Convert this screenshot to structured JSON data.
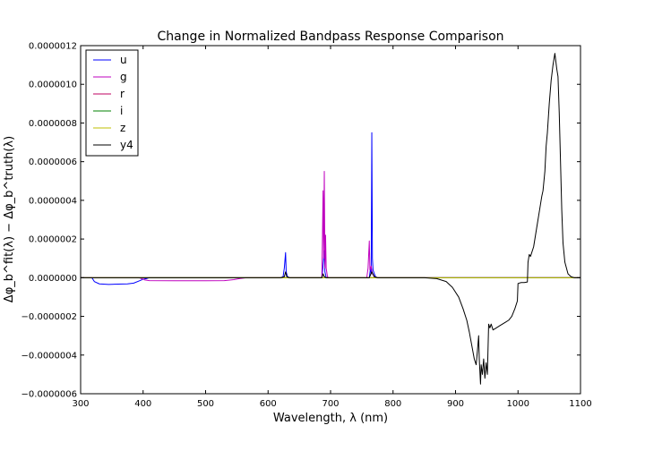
{
  "chart_data": {
    "type": "line",
    "title": "Change in Normalized Bandpass Response Comparison",
    "xlabel": "Wavelength, λ (nm)",
    "ylabel": "Δφ_b^fit(λ) − Δφ_b^truth(λ)",
    "xlim": [
      300,
      1100
    ],
    "ylim": [
      -6e-07,
      1.2e-06
    ],
    "x_ticks": [
      300,
      400,
      500,
      600,
      700,
      800,
      900,
      1000,
      1100
    ],
    "y_ticks": [
      -6e-07,
      -4e-07,
      -2e-07,
      0.0,
      2e-07,
      4e-07,
      6e-07,
      8e-07,
      1e-06,
      1.2e-06
    ],
    "x_tick_labels": [
      "300",
      "400",
      "500",
      "600",
      "700",
      "800",
      "900",
      "1000",
      "1100"
    ],
    "y_tick_labels": [
      "−0.0000006",
      "−0.0000004",
      "−0.0000002",
      "0.0000000",
      "0.0000002",
      "0.0000004",
      "0.0000006",
      "0.0000008",
      "0.0000010",
      "0.0000012"
    ],
    "grid": false,
    "legend_position": "top-left",
    "series": [
      {
        "name": "u",
        "color": "#0000ff",
        "points": [
          [
            300,
            0
          ],
          [
            318,
            0
          ],
          [
            322,
            -2e-08
          ],
          [
            330,
            -3.2e-08
          ],
          [
            345,
            -3.5e-08
          ],
          [
            360,
            -3.3e-08
          ],
          [
            375,
            -3.2e-08
          ],
          [
            385,
            -2.8e-08
          ],
          [
            395,
            -1.5e-08
          ],
          [
            400,
            -8e-09
          ],
          [
            405,
            -5e-09
          ],
          [
            410,
            0
          ],
          [
            620,
            0
          ],
          [
            624,
            5e-09
          ],
          [
            626,
            5e-08
          ],
          [
            628,
            1.3e-07
          ],
          [
            629,
            3e-08
          ],
          [
            631,
            5e-09
          ],
          [
            635,
            0
          ],
          [
            686,
            0
          ],
          [
            688,
            6e-08
          ],
          [
            690,
            1.4e-07
          ],
          [
            691,
            3e-08
          ],
          [
            693,
            0
          ],
          [
            762,
            0
          ],
          [
            764,
            5e-08
          ],
          [
            765,
            2e-08
          ],
          [
            766,
            7.5e-07
          ],
          [
            767,
            1e-07
          ],
          [
            768,
            4e-08
          ],
          [
            770,
            2e-08
          ],
          [
            772,
            5e-09
          ],
          [
            775,
            0
          ],
          [
            1100,
            0
          ]
        ]
      },
      {
        "name": "g",
        "color": "#bf00bf",
        "points": [
          [
            300,
            0
          ],
          [
            393,
            0
          ],
          [
            398,
            -5e-09
          ],
          [
            403,
            -1.2e-08
          ],
          [
            410,
            -1.5e-08
          ],
          [
            450,
            -1.6e-08
          ],
          [
            500,
            -1.6e-08
          ],
          [
            530,
            -1.5e-08
          ],
          [
            545,
            -1e-08
          ],
          [
            555,
            -4e-09
          ],
          [
            565,
            0
          ],
          [
            686,
            0
          ],
          [
            687,
            2e-07
          ],
          [
            688,
            4.5e-07
          ],
          [
            689,
            1e-07
          ],
          [
            690,
            5.5e-07
          ],
          [
            691,
            5e-08
          ],
          [
            692,
            2.2e-07
          ],
          [
            693,
            5e-08
          ],
          [
            695,
            5e-09
          ],
          [
            697,
            0
          ],
          [
            758,
            0
          ],
          [
            760,
            5e-08
          ],
          [
            762,
            1.9e-07
          ],
          [
            763,
            4e-08
          ],
          [
            765,
            6e-08
          ],
          [
            767,
            2e-08
          ],
          [
            770,
            5e-09
          ],
          [
            775,
            0
          ],
          [
            1100,
            0
          ]
        ]
      },
      {
        "name": "r",
        "color": "#bf0060",
        "points": [
          [
            300,
            0
          ],
          [
            1100,
            0
          ]
        ]
      },
      {
        "name": "i",
        "color": "#008000",
        "points": [
          [
            300,
            0
          ],
          [
            1100,
            0
          ]
        ]
      },
      {
        "name": "z",
        "color": "#bfbf00",
        "points": [
          [
            300,
            0
          ],
          [
            1100,
            0
          ]
        ]
      },
      {
        "name": "y4",
        "color": "#000000",
        "points": [
          [
            300,
            0
          ],
          [
            620,
            0
          ],
          [
            626,
            5e-09
          ],
          [
            628,
            3e-08
          ],
          [
            630,
            5e-09
          ],
          [
            634,
            0
          ],
          [
            686,
            0
          ],
          [
            688,
            2e-08
          ],
          [
            690,
            5e-09
          ],
          [
            693,
            0
          ],
          [
            762,
            0
          ],
          [
            766,
            3e-08
          ],
          [
            770,
            5e-09
          ],
          [
            775,
            0
          ],
          [
            850,
            0
          ],
          [
            870,
            -5e-09
          ],
          [
            885,
            -2e-08
          ],
          [
            895,
            -5e-08
          ],
          [
            905,
            -1e-07
          ],
          [
            912,
            -1.6e-07
          ],
          [
            918,
            -2.2e-07
          ],
          [
            922,
            -2.8e-07
          ],
          [
            926,
            -3.5e-07
          ],
          [
            930,
            -4.2e-07
          ],
          [
            933,
            -4.5e-07
          ],
          [
            935,
            -3.8e-07
          ],
          [
            937,
            -3e-07
          ],
          [
            938,
            -4.2e-07
          ],
          [
            940,
            -5.5e-07
          ],
          [
            941,
            -4.5e-07
          ],
          [
            943,
            -5e-07
          ],
          [
            945,
            -4.2e-07
          ],
          [
            947,
            -5.2e-07
          ],
          [
            949,
            -4.4e-07
          ],
          [
            951,
            -5e-07
          ],
          [
            953,
            -2.4e-07
          ],
          [
            955,
            -2.6e-07
          ],
          [
            957,
            -2.4e-07
          ],
          [
            960,
            -2.7e-07
          ],
          [
            965,
            -2.6e-07
          ],
          [
            970,
            -2.5e-07
          ],
          [
            975,
            -2.4e-07
          ],
          [
            980,
            -2.3e-07
          ],
          [
            985,
            -2.2e-07
          ],
          [
            990,
            -2e-07
          ],
          [
            995,
            -1.6e-07
          ],
          [
            999,
            -1.2e-07
          ],
          [
            1000,
            -3e-08
          ],
          [
            1005,
            -2.5e-08
          ],
          [
            1010,
            -2.5e-08
          ],
          [
            1015,
            -2.2e-08
          ],
          [
            1016,
            8e-08
          ],
          [
            1018,
            1.2e-07
          ],
          [
            1020,
            1.1e-07
          ],
          [
            1025,
            1.6e-07
          ],
          [
            1030,
            2.6e-07
          ],
          [
            1033,
            3.2e-07
          ],
          [
            1035,
            3.6e-07
          ],
          [
            1038,
            4.2e-07
          ],
          [
            1040,
            4.5e-07
          ],
          [
            1043,
            5.5e-07
          ],
          [
            1045,
            6.8e-07
          ],
          [
            1047,
            7.5e-07
          ],
          [
            1050,
            9e-07
          ],
          [
            1053,
            1.02e-06
          ],
          [
            1056,
            1.1e-06
          ],
          [
            1059,
            1.16e-06
          ],
          [
            1062,
            1.08e-06
          ],
          [
            1064,
            1.04e-06
          ],
          [
            1066,
            8.5e-07
          ],
          [
            1068,
            6e-07
          ],
          [
            1070,
            3.5e-07
          ],
          [
            1072,
            1.8e-07
          ],
          [
            1075,
            8e-08
          ],
          [
            1080,
            2e-08
          ],
          [
            1085,
            5e-09
          ],
          [
            1090,
            0
          ],
          [
            1100,
            0
          ]
        ]
      }
    ]
  }
}
